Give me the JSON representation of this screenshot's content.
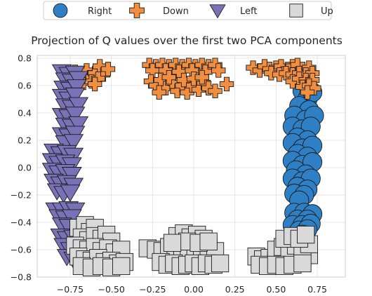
{
  "chart_data": {
    "type": "scatter",
    "title": "Projection of Q values over the first two PCA components",
    "xlabel": "",
    "ylabel": "",
    "xlim": [
      -0.95,
      0.92
    ],
    "ylim": [
      -0.8,
      0.82
    ],
    "x_ticks": [
      -0.75,
      -0.5,
      -0.25,
      0.0,
      0.25,
      0.5,
      0.75
    ],
    "x_tick_labels": [
      "−0.75",
      "−0.50",
      "−0.25",
      "0.00",
      "0.25",
      "0.50",
      "0.75"
    ],
    "y_ticks": [
      -0.8,
      -0.6,
      -0.4,
      -0.2,
      0.0,
      0.2,
      0.4,
      0.6,
      0.8
    ],
    "y_tick_labels": [
      "−0.8",
      "−0.6",
      "−0.4",
      "−0.2",
      "0.0",
      "0.2",
      "0.4",
      "0.6",
      "0.8"
    ],
    "grid": true,
    "legend": {
      "placement": "top-center",
      "columns": 4
    },
    "series": [
      {
        "name": "Right",
        "marker": "circle",
        "color": "#2e7fc4",
        "points": [
          [
            0.66,
            0.56
          ],
          [
            0.69,
            0.5
          ],
          [
            0.72,
            0.55
          ],
          [
            0.64,
            0.45
          ],
          [
            0.7,
            0.42
          ],
          [
            0.61,
            0.38
          ],
          [
            0.68,
            0.35
          ],
          [
            0.73,
            0.38
          ],
          [
            0.6,
            0.3
          ],
          [
            0.66,
            0.28
          ],
          [
            0.71,
            0.3
          ],
          [
            0.63,
            0.22
          ],
          [
            0.69,
            0.2
          ],
          [
            0.6,
            0.18
          ],
          [
            0.66,
            0.14
          ],
          [
            0.72,
            0.16
          ],
          [
            0.63,
            0.1
          ],
          [
            0.69,
            0.08
          ],
          [
            0.6,
            0.05
          ],
          [
            0.66,
            0.02
          ],
          [
            0.72,
            0.04
          ],
          [
            0.62,
            -0.02
          ],
          [
            0.68,
            -0.05
          ],
          [
            0.6,
            -0.08
          ],
          [
            0.66,
            -0.1
          ],
          [
            0.71,
            -0.08
          ],
          [
            0.63,
            -0.14
          ],
          [
            0.69,
            -0.16
          ],
          [
            0.61,
            -0.19
          ],
          [
            0.67,
            -0.2
          ],
          [
            0.64,
            -0.24
          ],
          [
            0.61,
            -0.33
          ],
          [
            0.67,
            -0.33
          ],
          [
            0.72,
            -0.34
          ],
          [
            0.63,
            -0.38
          ],
          [
            0.69,
            -0.38
          ],
          [
            0.6,
            -0.42
          ],
          [
            0.66,
            -0.42
          ],
          [
            0.71,
            -0.41
          ],
          [
            0.64,
            -0.46
          ],
          [
            0.69,
            -0.45
          ],
          [
            0.66,
            -0.49
          ]
        ]
      },
      {
        "name": "Down",
        "marker": "plus",
        "color": "#f28e3f",
        "points": [
          [
            -0.72,
            0.7
          ],
          [
            -0.69,
            0.67
          ],
          [
            -0.65,
            0.71
          ],
          [
            -0.63,
            0.66
          ],
          [
            -0.6,
            0.69
          ],
          [
            -0.57,
            0.74
          ],
          [
            -0.55,
            0.68
          ],
          [
            -0.52,
            0.72
          ],
          [
            -0.67,
            0.62
          ],
          [
            -0.62,
            0.63
          ],
          [
            -0.58,
            0.65
          ],
          [
            -0.7,
            0.64
          ],
          [
            -0.6,
            0.61
          ],
          [
            -0.27,
            0.75
          ],
          [
            -0.23,
            0.74
          ],
          [
            -0.19,
            0.75
          ],
          [
            -0.15,
            0.74
          ],
          [
            -0.11,
            0.75
          ],
          [
            -0.07,
            0.74
          ],
          [
            -0.03,
            0.75
          ],
          [
            0.01,
            0.74
          ],
          [
            0.05,
            0.75
          ],
          [
            0.09,
            0.74
          ],
          [
            0.13,
            0.75
          ],
          [
            -0.25,
            0.71
          ],
          [
            -0.17,
            0.71
          ],
          [
            -0.09,
            0.7
          ],
          [
            -0.01,
            0.71
          ],
          [
            0.07,
            0.7
          ],
          [
            0.15,
            0.71
          ],
          [
            -0.26,
            0.63
          ],
          [
            -0.23,
            0.6
          ],
          [
            -0.2,
            0.64
          ],
          [
            -0.17,
            0.58
          ],
          [
            -0.13,
            0.62
          ],
          [
            -0.1,
            0.56
          ],
          [
            -0.07,
            0.6
          ],
          [
            -0.04,
            0.55
          ],
          [
            -0.01,
            0.6
          ],
          [
            0.03,
            0.57
          ],
          [
            0.06,
            0.62
          ],
          [
            0.09,
            0.58
          ],
          [
            0.13,
            0.56
          ],
          [
            -0.21,
            0.55
          ],
          [
            -0.06,
            0.64
          ],
          [
            0.0,
            0.65
          ],
          [
            0.05,
            0.66
          ],
          [
            -0.15,
            0.66
          ],
          [
            0.2,
            0.61
          ],
          [
            0.36,
            0.73
          ],
          [
            0.4,
            0.71
          ],
          [
            0.43,
            0.74
          ],
          [
            0.46,
            0.72
          ],
          [
            0.5,
            0.73
          ],
          [
            0.53,
            0.74
          ],
          [
            0.57,
            0.72
          ],
          [
            0.6,
            0.74
          ],
          [
            0.63,
            0.75
          ],
          [
            0.66,
            0.72
          ],
          [
            0.7,
            0.73
          ],
          [
            0.47,
            0.69
          ],
          [
            0.52,
            0.68
          ],
          [
            0.56,
            0.69
          ],
          [
            0.6,
            0.68
          ],
          [
            0.64,
            0.69
          ],
          [
            0.68,
            0.68
          ],
          [
            0.72,
            0.69
          ],
          [
            0.6,
            0.63
          ],
          [
            0.64,
            0.65
          ],
          [
            0.68,
            0.64
          ],
          [
            0.72,
            0.64
          ],
          [
            0.66,
            0.59
          ],
          [
            0.7,
            0.6
          ],
          [
            0.73,
            0.58
          ],
          [
            0.69,
            0.55
          ]
        ]
      },
      {
        "name": "Left",
        "marker": "triangle_down",
        "color": "#7a72b7",
        "points": [
          [
            -0.8,
            0.7
          ],
          [
            -0.76,
            0.68
          ],
          [
            -0.72,
            0.69
          ],
          [
            -0.78,
            0.64
          ],
          [
            -0.74,
            0.63
          ],
          [
            -0.7,
            0.65
          ],
          [
            -0.79,
            0.58
          ],
          [
            -0.75,
            0.57
          ],
          [
            -0.71,
            0.59
          ],
          [
            -0.8,
            0.52
          ],
          [
            -0.76,
            0.5
          ],
          [
            -0.72,
            0.53
          ],
          [
            -0.78,
            0.45
          ],
          [
            -0.74,
            0.44
          ],
          [
            -0.7,
            0.46
          ],
          [
            -0.8,
            0.38
          ],
          [
            -0.76,
            0.37
          ],
          [
            -0.72,
            0.39
          ],
          [
            -0.78,
            0.31
          ],
          [
            -0.74,
            0.3
          ],
          [
            -0.7,
            0.32
          ],
          [
            -0.8,
            0.24
          ],
          [
            -0.76,
            0.23
          ],
          [
            -0.72,
            0.25
          ],
          [
            -0.78,
            0.18
          ],
          [
            -0.73,
            0.19
          ],
          [
            -0.85,
            0.12
          ],
          [
            -0.81,
            0.1
          ],
          [
            -0.77,
            0.11
          ],
          [
            -0.73,
            0.09
          ],
          [
            -0.86,
            0.05
          ],
          [
            -0.82,
            0.03
          ],
          [
            -0.78,
            0.04
          ],
          [
            -0.74,
            0.02
          ],
          [
            -0.86,
            -0.02
          ],
          [
            -0.82,
            -0.04
          ],
          [
            -0.78,
            -0.03
          ],
          [
            -0.74,
            -0.05
          ],
          [
            -0.85,
            -0.1
          ],
          [
            -0.81,
            -0.12
          ],
          [
            -0.77,
            -0.11
          ],
          [
            -0.73,
            -0.13
          ],
          [
            -0.83,
            -0.17
          ],
          [
            -0.79,
            -0.19
          ],
          [
            -0.75,
            -0.18
          ],
          [
            -0.84,
            -0.31
          ],
          [
            -0.8,
            -0.31
          ],
          [
            -0.76,
            -0.3
          ],
          [
            -0.72,
            -0.31
          ],
          [
            -0.82,
            -0.36
          ],
          [
            -0.78,
            -0.37
          ],
          [
            -0.74,
            -0.36
          ],
          [
            -0.8,
            -0.42
          ],
          [
            -0.76,
            -0.43
          ],
          [
            -0.81,
            -0.5
          ],
          [
            -0.77,
            -0.52
          ],
          [
            -0.73,
            -0.51
          ],
          [
            -0.79,
            -0.57
          ],
          [
            -0.75,
            -0.6
          ],
          [
            -0.71,
            -0.59
          ],
          [
            -0.77,
            -0.65
          ],
          [
            -0.73,
            -0.67
          ]
        ]
      },
      {
        "name": "Up",
        "marker": "square",
        "color": "#d9d9d9",
        "points": [
          [
            -0.7,
            -0.44
          ],
          [
            -0.66,
            -0.42
          ],
          [
            -0.63,
            -0.47
          ],
          [
            -0.6,
            -0.44
          ],
          [
            -0.68,
            -0.51
          ],
          [
            -0.64,
            -0.53
          ],
          [
            -0.6,
            -0.5
          ],
          [
            -0.56,
            -0.52
          ],
          [
            -0.53,
            -0.49
          ],
          [
            -0.5,
            -0.54
          ],
          [
            -0.72,
            -0.57
          ],
          [
            -0.68,
            -0.59
          ],
          [
            -0.64,
            -0.6
          ],
          [
            -0.6,
            -0.58
          ],
          [
            -0.56,
            -0.61
          ],
          [
            -0.52,
            -0.59
          ],
          [
            -0.48,
            -0.62
          ],
          [
            -0.44,
            -0.6
          ],
          [
            -0.7,
            -0.65
          ],
          [
            -0.66,
            -0.67
          ],
          [
            -0.62,
            -0.68
          ],
          [
            -0.58,
            -0.66
          ],
          [
            -0.54,
            -0.69
          ],
          [
            -0.5,
            -0.68
          ],
          [
            -0.46,
            -0.7
          ],
          [
            -0.42,
            -0.69
          ],
          [
            -0.68,
            -0.72
          ],
          [
            -0.62,
            -0.73
          ],
          [
            -0.56,
            -0.72
          ],
          [
            -0.5,
            -0.73
          ],
          [
            -0.44,
            -0.72
          ],
          [
            -0.28,
            -0.59
          ],
          [
            -0.23,
            -0.6
          ],
          [
            -0.19,
            -0.61
          ],
          [
            -0.15,
            -0.58
          ],
          [
            -0.11,
            -0.6
          ],
          [
            -0.07,
            -0.59
          ],
          [
            -0.03,
            -0.61
          ],
          [
            0.01,
            -0.58
          ],
          [
            0.05,
            -0.6
          ],
          [
            0.09,
            -0.59
          ],
          [
            0.13,
            -0.61
          ],
          [
            -0.2,
            -0.69
          ],
          [
            -0.16,
            -0.71
          ],
          [
            -0.12,
            -0.7
          ],
          [
            -0.08,
            -0.72
          ],
          [
            -0.04,
            -0.71
          ],
          [
            0.0,
            -0.7
          ],
          [
            0.04,
            -0.72
          ],
          [
            0.08,
            -0.7
          ],
          [
            0.12,
            -0.71
          ],
          [
            0.16,
            -0.7
          ],
          [
            -0.1,
            -0.5
          ],
          [
            -0.06,
            -0.48
          ],
          [
            -0.02,
            -0.51
          ],
          [
            0.02,
            -0.49
          ],
          [
            0.06,
            -0.52
          ],
          [
            -0.04,
            -0.54
          ],
          [
            0.03,
            -0.55
          ],
          [
            0.09,
            -0.54
          ],
          [
            -0.13,
            -0.55
          ],
          [
            0.38,
            -0.65
          ],
          [
            0.42,
            -0.67
          ],
          [
            0.46,
            -0.66
          ],
          [
            0.5,
            -0.68
          ],
          [
            0.54,
            -0.66
          ],
          [
            0.58,
            -0.67
          ],
          [
            0.62,
            -0.65
          ],
          [
            0.66,
            -0.66
          ],
          [
            0.7,
            -0.64
          ],
          [
            0.5,
            -0.6
          ],
          [
            0.54,
            -0.58
          ],
          [
            0.58,
            -0.6
          ],
          [
            0.62,
            -0.57
          ],
          [
            0.66,
            -0.59
          ],
          [
            0.7,
            -0.56
          ],
          [
            0.55,
            -0.52
          ],
          [
            0.6,
            -0.5
          ],
          [
            0.64,
            -0.52
          ],
          [
            0.68,
            -0.49
          ],
          [
            0.4,
            -0.71
          ],
          [
            0.45,
            -0.72
          ],
          [
            0.5,
            -0.71
          ],
          [
            0.55,
            -0.72
          ],
          [
            0.6,
            -0.71
          ],
          [
            0.66,
            -0.7
          ]
        ]
      }
    ]
  }
}
